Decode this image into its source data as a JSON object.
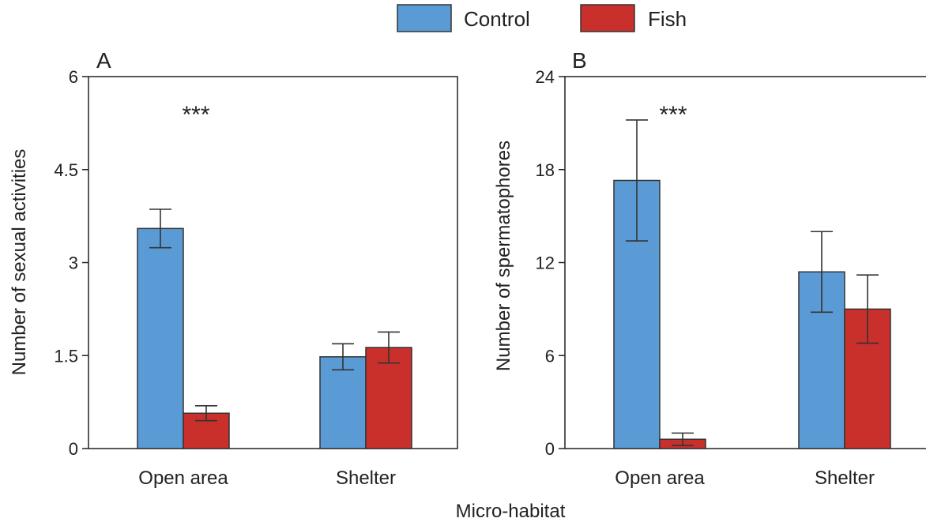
{
  "colors": {
    "control": "#5b9bd5",
    "fish": "#c9302c"
  },
  "legend": {
    "placement": "top-center",
    "items": [
      {
        "label": "Control",
        "color": "#5b9bd5"
      },
      {
        "label": "Fish",
        "color": "#c9302c"
      }
    ]
  },
  "shared_xlabel": "Micro-habitat",
  "chart_data": [
    {
      "type": "bar",
      "panel": "A",
      "title": "",
      "xlabel": "",
      "ylabel": "Number of sexual activities",
      "ylim": [
        0,
        6
      ],
      "yticks": [
        0,
        1.5,
        3,
        4.5,
        6
      ],
      "ytick_labels": [
        "0",
        "1.5",
        "3",
        "4.5",
        "6"
      ],
      "categories": [
        "Open area",
        "Shelter"
      ],
      "series": [
        {
          "name": "Control",
          "values": [
            3.55,
            1.48
          ],
          "errors": [
            0.31,
            0.21
          ]
        },
        {
          "name": "Fish",
          "values": [
            0.57,
            1.63
          ],
          "errors": [
            0.12,
            0.25
          ]
        }
      ],
      "annotations": [
        {
          "text": "***",
          "category": "Open area"
        }
      ]
    },
    {
      "type": "bar",
      "panel": "B",
      "title": "",
      "xlabel": "",
      "ylabel": "Number of spermatophores",
      "ylim": [
        0,
        24
      ],
      "yticks": [
        0,
        6,
        12,
        18,
        24
      ],
      "ytick_labels": [
        "0",
        "6",
        "12",
        "18",
        "24"
      ],
      "categories": [
        "Open area",
        "Shelter"
      ],
      "series": [
        {
          "name": "Control",
          "values": [
            17.3,
            11.4
          ],
          "errors": [
            3.9,
            2.6
          ]
        },
        {
          "name": "Fish",
          "values": [
            0.6,
            9.0
          ],
          "errors": [
            0.4,
            2.2
          ]
        }
      ],
      "annotations": [
        {
          "text": "***",
          "category": "Open area"
        }
      ]
    }
  ]
}
